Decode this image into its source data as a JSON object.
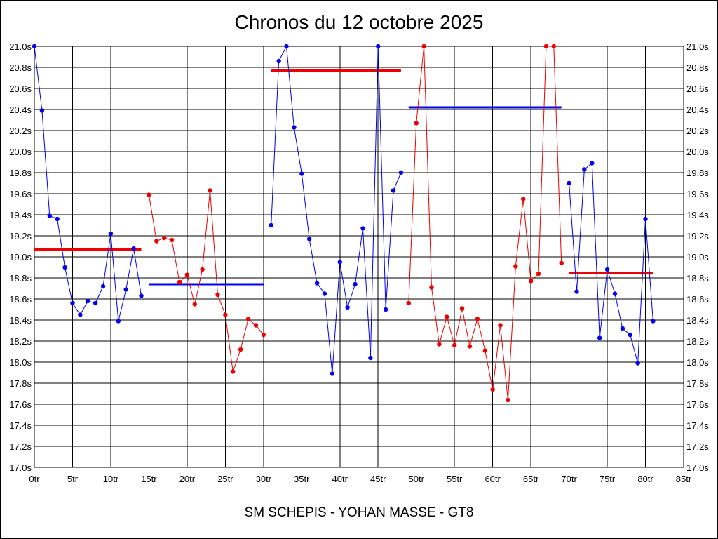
{
  "chart_data": {
    "type": "line",
    "title": "Chronos du 12 octobre 2025",
    "subtitle": "SM SCHEPIS - YOHAN MASSE - GT8",
    "x_unit": "tr",
    "y_unit": "s",
    "xlim": [
      0,
      85
    ],
    "ylim": [
      17.0,
      21.0
    ],
    "x_ticks": [
      0,
      5,
      10,
      15,
      20,
      25,
      30,
      35,
      40,
      45,
      50,
      55,
      60,
      65,
      70,
      75,
      80,
      85
    ],
    "y_ticks": [
      17.0,
      17.2,
      17.4,
      17.6,
      17.8,
      18.0,
      18.2,
      18.4,
      18.6,
      18.8,
      19.0,
      19.2,
      19.4,
      19.6,
      19.8,
      20.0,
      20.2,
      20.4,
      20.6,
      20.8,
      21.0
    ],
    "x_tick_labels": [
      "0tr",
      "5tr",
      "10tr",
      "15tr",
      "20tr",
      "25tr",
      "30tr",
      "35tr",
      "40tr",
      "45tr",
      "50tr",
      "55tr",
      "60tr",
      "65tr",
      "70tr",
      "75tr",
      "80tr",
      "85tr"
    ],
    "y_tick_labels": [
      "17.0s",
      "17.2s",
      "17.4s",
      "17.6s",
      "17.8s",
      "18.0s",
      "18.2s",
      "18.4s",
      "18.6s",
      "18.8s",
      "19.0s",
      "19.2s",
      "19.4s",
      "19.6s",
      "19.8s",
      "20.0s",
      "20.2s",
      "20.4s",
      "20.6s",
      "20.8s",
      "21.0s"
    ],
    "grid": true,
    "colors": {
      "blue": "#0000ee",
      "red": "#ee0000"
    },
    "series": [
      {
        "color": "blue",
        "x": [
          0,
          1,
          2,
          3,
          4,
          5,
          6,
          7,
          8,
          9,
          10,
          11,
          12,
          13,
          14
        ],
        "y": [
          21.0,
          20.39,
          19.39,
          19.36,
          18.9,
          18.56,
          18.45,
          18.58,
          18.56,
          18.72,
          19.22,
          18.39,
          18.69,
          19.08,
          18.63
        ]
      },
      {
        "color": "red",
        "x": [
          15,
          16,
          17,
          18,
          19,
          20,
          21,
          22,
          23,
          24,
          25,
          26,
          27,
          28,
          29,
          30
        ],
        "y": [
          19.59,
          19.15,
          19.18,
          19.16,
          18.76,
          18.83,
          18.55,
          18.88,
          19.63,
          18.64,
          18.45,
          17.91,
          18.12,
          18.41,
          18.35,
          18.26
        ]
      },
      {
        "color": "blue",
        "x": [
          31,
          32,
          33,
          34,
          35,
          36,
          37,
          38,
          39,
          40,
          41,
          42,
          43,
          44,
          45,
          46,
          47,
          48
        ],
        "y": [
          19.3,
          20.86,
          21.0,
          20.23,
          19.79,
          19.17,
          18.75,
          18.65,
          17.89,
          18.95,
          18.52,
          18.74,
          19.27,
          18.04,
          21.0,
          18.5,
          19.63,
          19.8
        ]
      },
      {
        "color": "red",
        "x": [
          49,
          50,
          51,
          52,
          53,
          54,
          55,
          56,
          57,
          58,
          59,
          60,
          61,
          62,
          63,
          64,
          65,
          66,
          67,
          68,
          69
        ],
        "y": [
          18.56,
          20.27,
          21.0,
          18.71,
          18.17,
          18.43,
          18.16,
          18.51,
          18.15,
          18.41,
          18.11,
          17.74,
          18.35,
          17.64,
          18.91,
          19.55,
          18.77,
          18.84,
          21.0,
          21.0,
          18.94
        ]
      },
      {
        "color": "blue",
        "x": [
          70,
          71,
          72,
          73,
          74,
          75,
          76,
          77,
          78,
          79,
          80,
          81
        ],
        "y": [
          19.7,
          18.67,
          19.83,
          19.89,
          18.23,
          18.88,
          18.65,
          18.32,
          18.26,
          17.99,
          19.36,
          18.39
        ]
      }
    ],
    "averages": [
      {
        "color": "red",
        "x": [
          0,
          14
        ],
        "y": 19.07
      },
      {
        "color": "blue",
        "x": [
          15,
          30
        ],
        "y": 18.74
      },
      {
        "color": "red",
        "x": [
          31,
          48
        ],
        "y": 20.77
      },
      {
        "color": "blue",
        "x": [
          49,
          69
        ],
        "y": 20.42
      },
      {
        "color": "red",
        "x": [
          70,
          81
        ],
        "y": 18.85
      }
    ]
  }
}
